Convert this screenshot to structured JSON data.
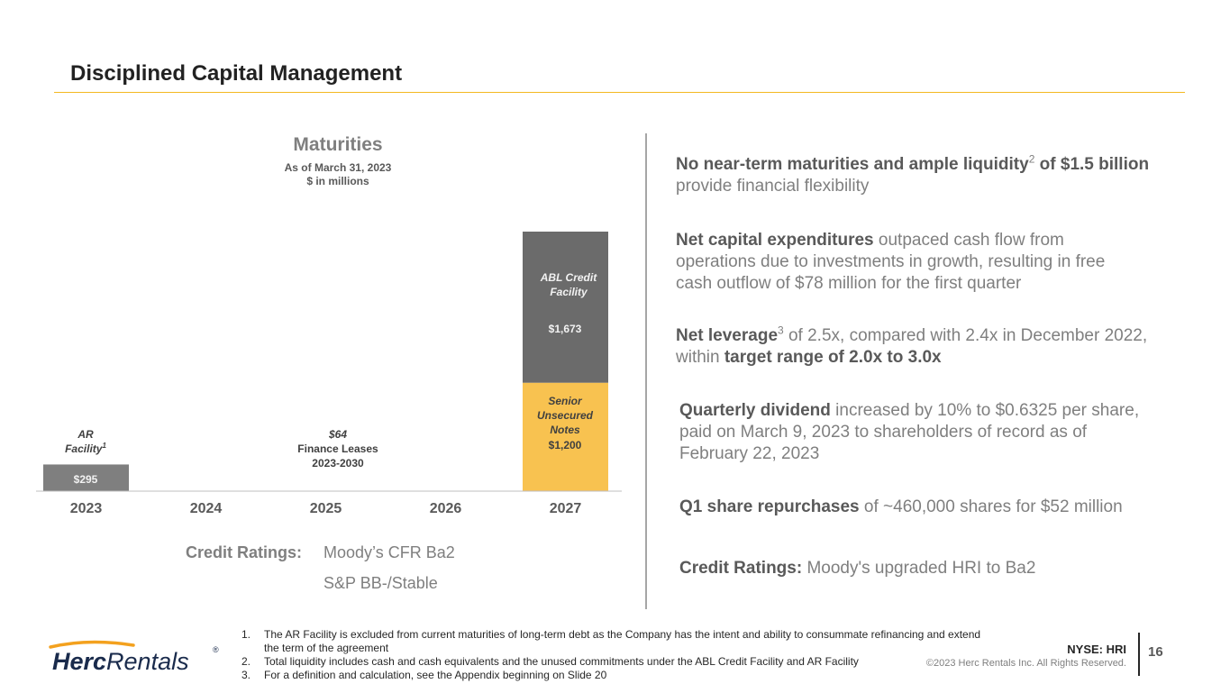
{
  "slide": {
    "title": "Disciplined Capital Management",
    "page_number": "16",
    "ticker": "NYSE: HRI",
    "copyright": "©2023 Herc Rentals Inc.  All Rights Reserved."
  },
  "chart_data": {
    "type": "bar",
    "title": "Maturities",
    "subtitle_1": "As of March 31, 2023",
    "subtitle_2": "$ in millions",
    "categories": [
      "2023",
      "2024",
      "2025",
      "2026",
      "2027"
    ],
    "series": [
      {
        "name": "AR Facility",
        "values": [
          295,
          0,
          0,
          0,
          0
        ],
        "color": "#7f7f7f"
      },
      {
        "name": "Senior Unsecured Notes",
        "values": [
          0,
          0,
          0,
          0,
          1200
        ],
        "color": "#f8c250"
      },
      {
        "name": "ABL Credit Facility",
        "values": [
          0,
          0,
          0,
          0,
          1673
        ],
        "color": "#6b6b6b"
      }
    ],
    "ylim": [
      0,
      2873
    ],
    "grid": false,
    "data_labels": {
      "ar_value": "$295",
      "ar_name_1": "AR",
      "ar_name_2": "Facility",
      "ar_sup": "1",
      "lease_value": "$64",
      "lease_name": "Finance Leases",
      "lease_period": "2023-2030",
      "senior_name_1": "Senior",
      "senior_name_2": "Unsecured",
      "senior_name_3": "Notes",
      "senior_value": "$1,200",
      "abl_name_1": "ABL Credit",
      "abl_name_2": "Facility",
      "abl_value": "$1,673"
    }
  },
  "credit_ratings": {
    "label": "Credit Ratings:",
    "moodys": "Moody’s CFR Ba2",
    "sp": "S&P BB-/Stable"
  },
  "points": {
    "p1_bold_1": "No near-term maturities and ample liquidity",
    "p1_sup": "2",
    "p1_bold_2": " of $1.5 billion",
    "p1_rest": " provide financial flexibility",
    "p2_bold": "Net capital expenditures",
    "p2_rest": " outpaced cash flow from operations due to investments in growth, resulting in free cash outflow of $78 million for the first quarter",
    "p3_bold_1": "Net leverage",
    "p3_sup": "3",
    "p3_mid": " of 2.5x,  compared with 2.4x in December 2022, within ",
    "p3_bold_2": "target range of 2.0x to 3.0x",
    "p4_bold": "Quarterly dividend",
    "p4_rest": " increased by 10% to $0.6325 per share, paid on March 9, 2023 to shareholders of record as of February 22, 2023",
    "p5_bold": "Q1 share repurchases",
    "p5_rest": " of ~460,000 shares for $52 million",
    "p6_bold": "Credit Ratings:",
    "p6_rest": " Moody's upgraded HRI to Ba2"
  },
  "footnotes": [
    {
      "num": "1.",
      "text": "The AR Facility is excluded from current maturities of long-term debt as the Company has the intent and ability to consummate refinancing and extend the term of the agreement"
    },
    {
      "num": "2.",
      "text": "Total liquidity includes cash and cash equivalents and the unused commitments under the ABL Credit Facility and AR Facility"
    },
    {
      "num": "3.",
      "text": "For a definition and calculation, see the Appendix beginning on Slide 20"
    }
  ],
  "logo": {
    "word_1": "Herc",
    "word_2": "Rentals",
    "registered": "®",
    "orange": "#f3a11e",
    "navy": "#1a2b4c"
  }
}
